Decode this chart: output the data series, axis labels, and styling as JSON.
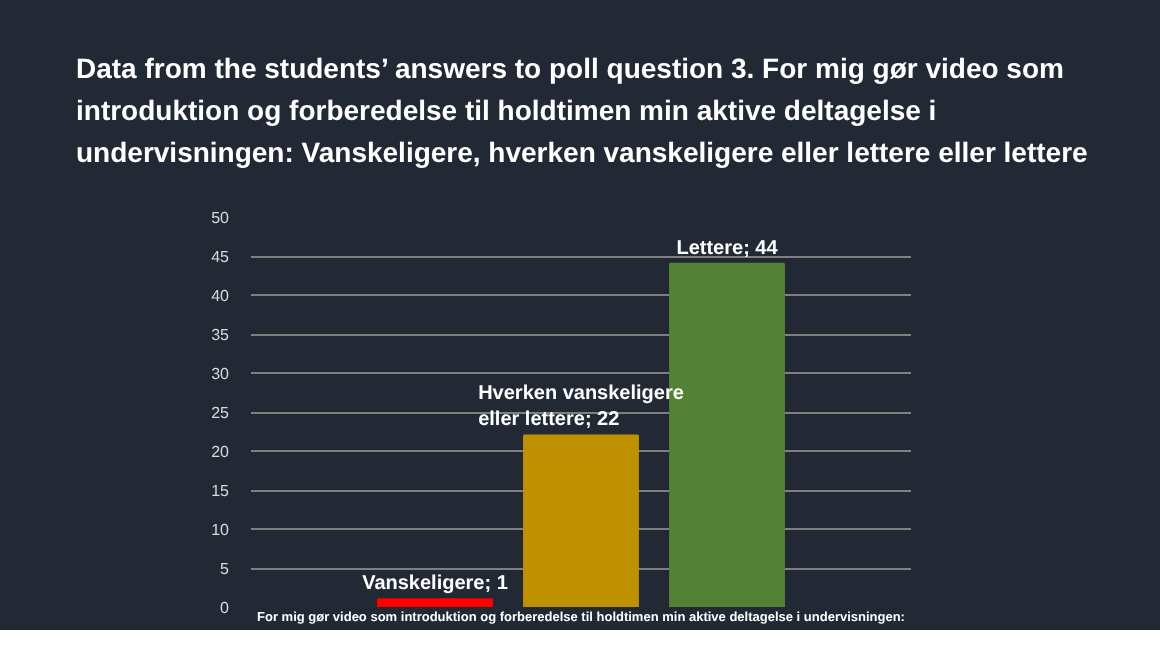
{
  "chart_data": {
    "type": "bar",
    "title": "Data from the students’ answers to poll question 3. For mig gør video som introduktion og forberedelse til holdtimen min aktive deltagelse i undervisningen: Vanskeligere, hverken vanskeligere eller lettere eller lettere",
    "xlabel": "For mig gør video som introduktion og forberedelse til holdtimen min aktive deltagelse i undervisningen:",
    "categories": [
      null,
      null,
      null
    ],
    "values": [
      1,
      22,
      44
    ],
    "colors": [
      "#ff0000",
      "#bf9000",
      "#538135"
    ],
    "value_labels": [
      "Vanskeligere; 1",
      "Hverken vanskeligere eller lettere; 22",
      "Lettere; 44"
    ],
    "ylim": [
      0,
      50
    ],
    "yticks": [
      0,
      5,
      10,
      15,
      20,
      25,
      30,
      35,
      40,
      45,
      50
    ],
    "grid": "y"
  }
}
